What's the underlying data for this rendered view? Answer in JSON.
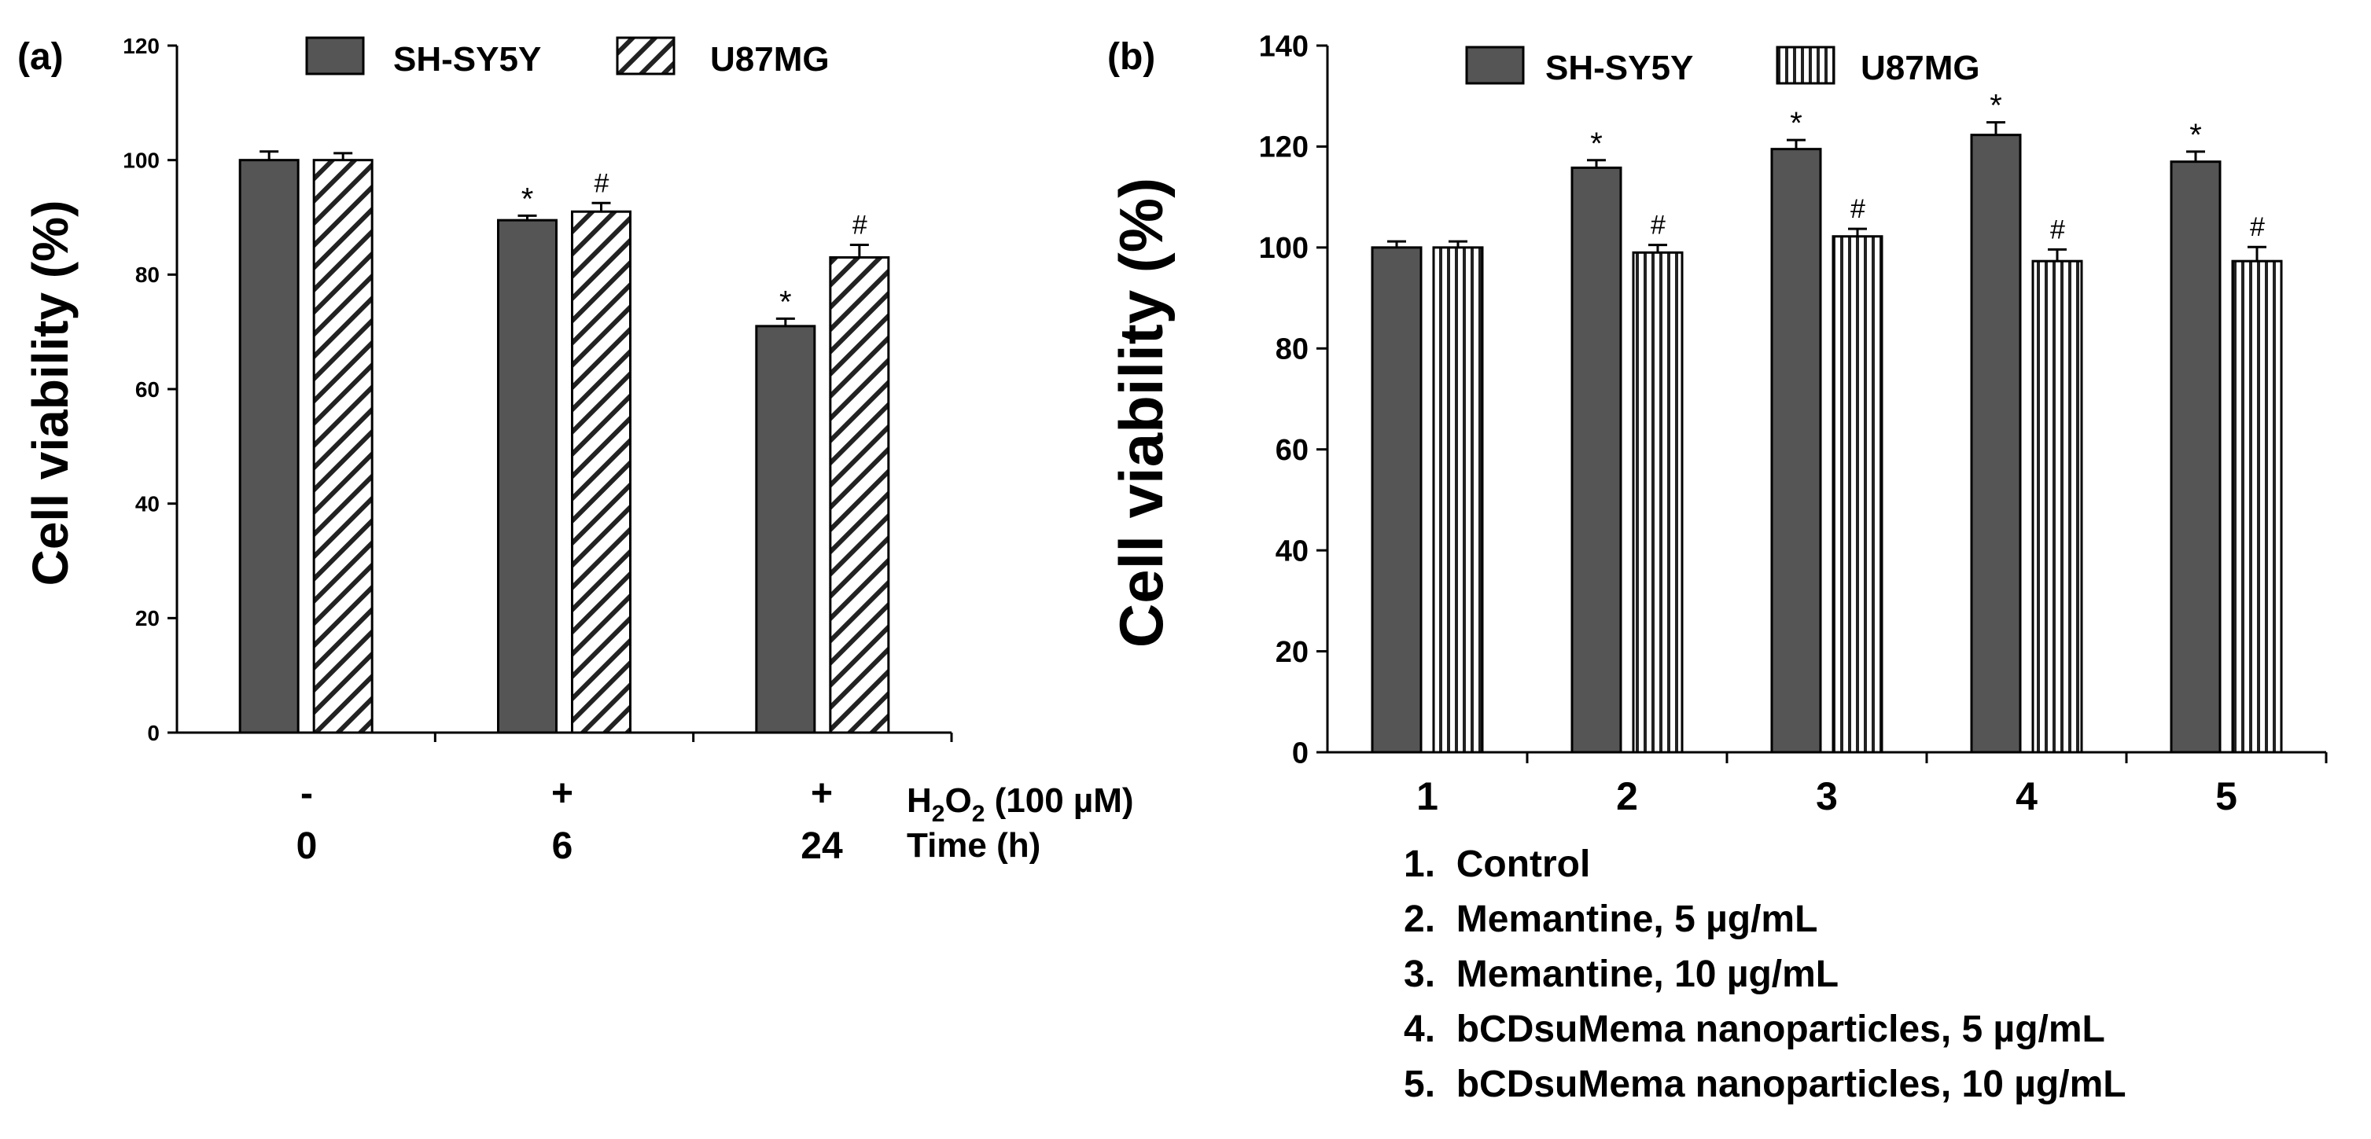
{
  "chart_data": [
    {
      "type": "bar",
      "panel_label": "(a)",
      "ylabel": "Cell viability (%)",
      "ylim": [
        0,
        120
      ],
      "yticks": [
        "0",
        "20",
        "40",
        "60",
        "80",
        "100",
        "120"
      ],
      "legend_placement": "top-center",
      "series": [
        {
          "name": "SH-SY5Y",
          "values": [
            100,
            89.5,
            71
          ],
          "errors": [
            1.5,
            0.8,
            1.3
          ],
          "sig": [
            "",
            "*",
            "*"
          ]
        },
        {
          "name": "U87MG",
          "values": [
            100,
            91,
            83
          ],
          "errors": [
            1.2,
            1.5,
            2.2
          ],
          "sig": [
            "",
            "#",
            "#"
          ]
        }
      ],
      "categories": [
        "0",
        "6",
        "24"
      ],
      "row1_values": [
        "-",
        "+",
        "+"
      ],
      "row1_label_main": "H",
      "row1_label_sub1": "2",
      "row1_label_mid": "O",
      "row1_label_sub2": "2",
      "row1_label_tail": " (100 µM)",
      "row2_label": "Time (h)"
    },
    {
      "type": "bar",
      "panel_label": "(b)",
      "ylabel": "Cell viability (%)",
      "ylim": [
        0,
        140
      ],
      "yticks": [
        "0",
        "20",
        "40",
        "60",
        "80",
        "100",
        "120",
        "140"
      ],
      "legend_placement": "top-center",
      "categories": [
        "1",
        "2",
        "3",
        "4",
        "5"
      ],
      "series": [
        {
          "name": "SH-SY5Y",
          "values": [
            100,
            115.8,
            119.5,
            122.3,
            117
          ],
          "errors": [
            1.2,
            1.5,
            1.8,
            2.5,
            2.0
          ],
          "sig": [
            "",
            "*",
            "*",
            "*",
            "*"
          ]
        },
        {
          "name": "U87MG",
          "values": [
            100,
            99,
            102.2,
            97.3,
            97.3
          ],
          "errors": [
            1.2,
            1.5,
            1.5,
            2.3,
            2.8
          ],
          "sig": [
            "",
            "#",
            "#",
            "#",
            "#"
          ]
        }
      ],
      "key": [
        "1.  Control",
        "2.  Memantine, 5 µg/mL",
        "3.  Memantine, 10 µg/mL",
        "4.  bCDsuMema nanoparticles, 5 µg/mL",
        "5.  bCDsuMema nanoparticles, 10 µg/mL"
      ]
    }
  ]
}
